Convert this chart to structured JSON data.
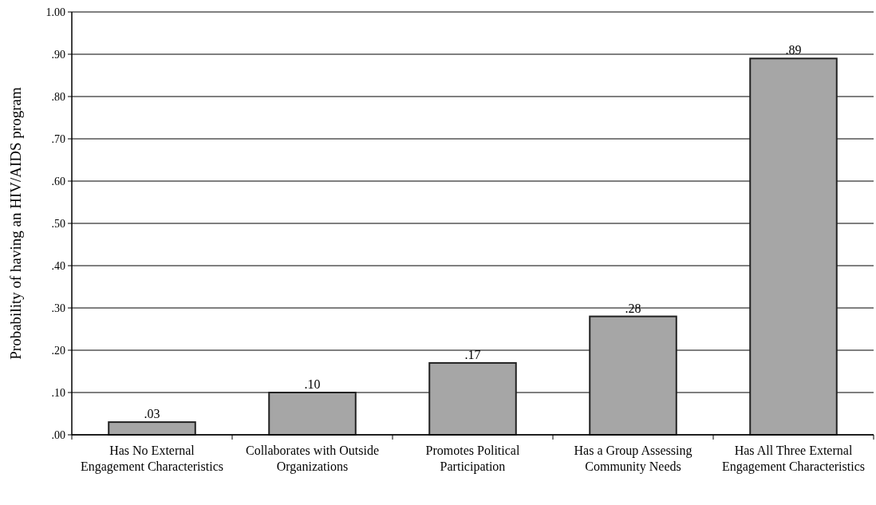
{
  "chart_data": {
    "type": "bar",
    "ylabel": "Probability of having an HIV/AIDS program",
    "categories": [
      "Has No External Engagement Characteristics",
      "Collaborates with Outside Organizations",
      "Promotes Political Participation",
      "Has a Group Assessing Community Needs",
      "Has All Three External Engagement Characteristics"
    ],
    "values": [
      0.03,
      0.1,
      0.17,
      0.28,
      0.89
    ],
    "value_labels": [
      ".03",
      ".10",
      ".17",
      ".28",
      ".89"
    ],
    "color": "#a6a6a6",
    "ylim": [
      0,
      1
    ],
    "yticks": [
      {
        "value": 0,
        "label": ".00"
      },
      {
        "value": 0.1,
        "label": ".10"
      },
      {
        "value": 0.2,
        "label": ".20"
      },
      {
        "value": 0.3,
        "label": ".30"
      },
      {
        "value": 0.4,
        "label": ".40"
      },
      {
        "value": 0.5,
        "label": ".50"
      },
      {
        "value": 0.6,
        "label": ".60"
      },
      {
        "value": 0.7,
        "label": ".70"
      },
      {
        "value": 0.8,
        "label": ".80"
      },
      {
        "value": 0.9,
        "label": ".90"
      },
      {
        "value": 1,
        "label": "1.00"
      }
    ],
    "grid": "y"
  }
}
